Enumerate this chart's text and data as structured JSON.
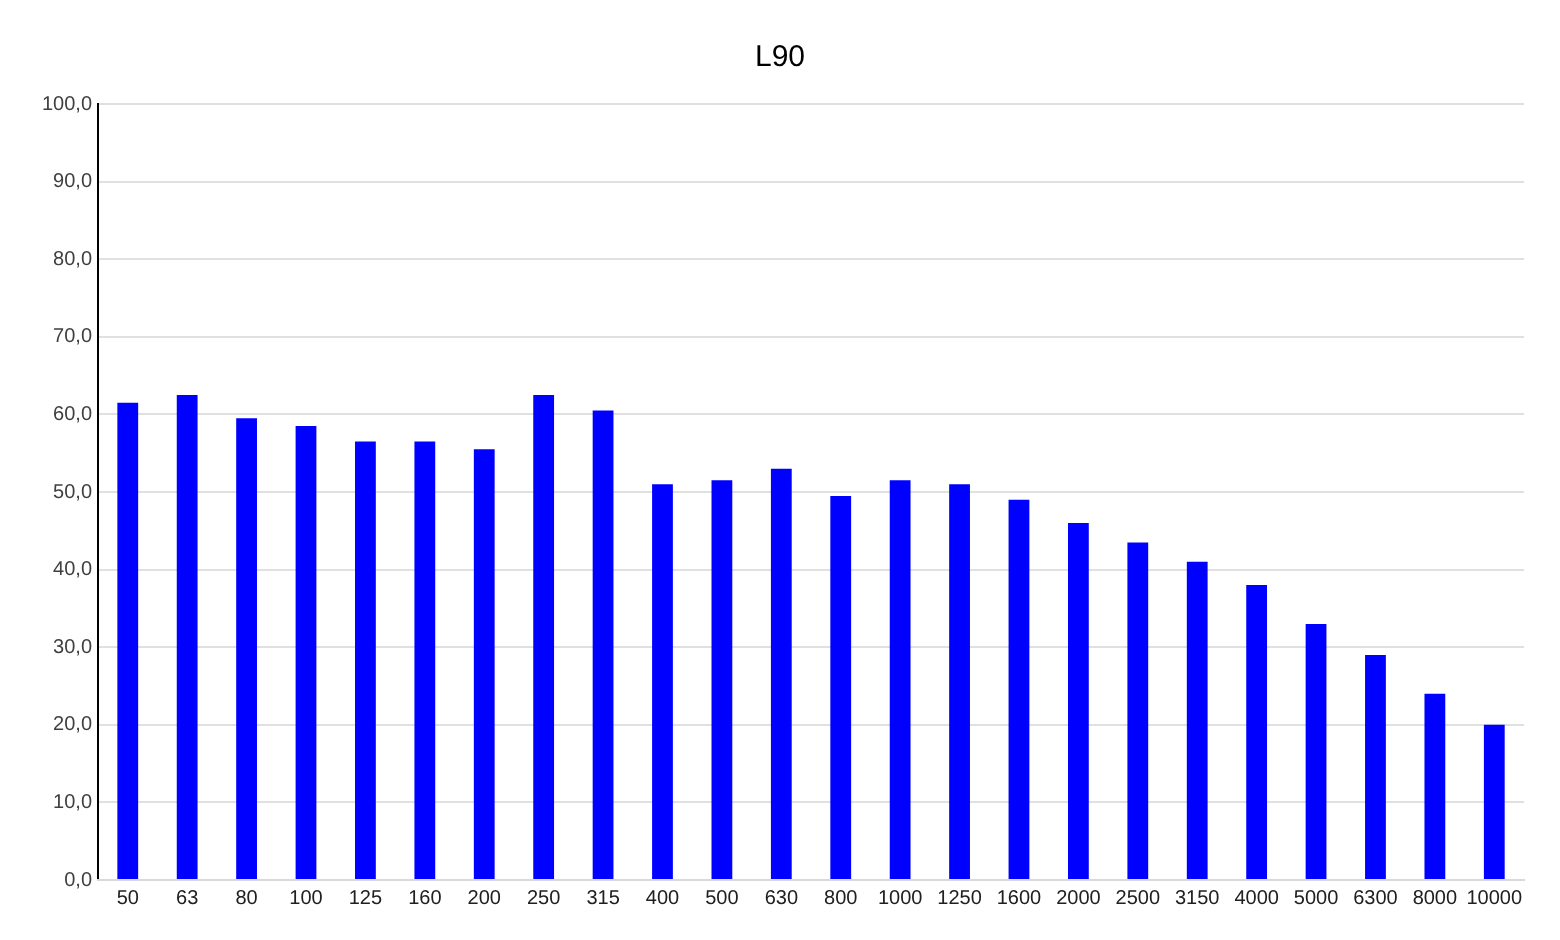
{
  "chart_data": {
    "type": "bar",
    "title": "L90",
    "categories": [
      "50",
      "63",
      "80",
      "100",
      "125",
      "160",
      "200",
      "250",
      "315",
      "400",
      "500",
      "630",
      "800",
      "1000",
      "1250",
      "1600",
      "2000",
      "2500",
      "3150",
      "4000",
      "5000",
      "6300",
      "8000",
      "10000"
    ],
    "values": [
      61.5,
      62.5,
      59.5,
      58.5,
      56.5,
      56.5,
      55.5,
      62.5,
      60.5,
      51,
      51.5,
      53,
      49.5,
      51.5,
      51,
      49,
      46,
      43.5,
      41,
      38,
      33,
      29,
      24,
      20
    ],
    "color": "#0000ff",
    "ylim": [
      0,
      100
    ],
    "yticks": [
      {
        "value": 0,
        "label": "0,0"
      },
      {
        "value": 10,
        "label": "10,0"
      },
      {
        "value": 20,
        "label": "20,0"
      },
      {
        "value": 30,
        "label": "30,0"
      },
      {
        "value": 40,
        "label": "40,0"
      },
      {
        "value": 50,
        "label": "50,0"
      },
      {
        "value": 60,
        "label": "60,0"
      },
      {
        "value": 70,
        "label": "70,0"
      },
      {
        "value": 80,
        "label": "80,0"
      },
      {
        "value": 90,
        "label": "90,0"
      },
      {
        "value": 100,
        "label": "100,0"
      }
    ],
    "grid": "y",
    "legend": false
  }
}
